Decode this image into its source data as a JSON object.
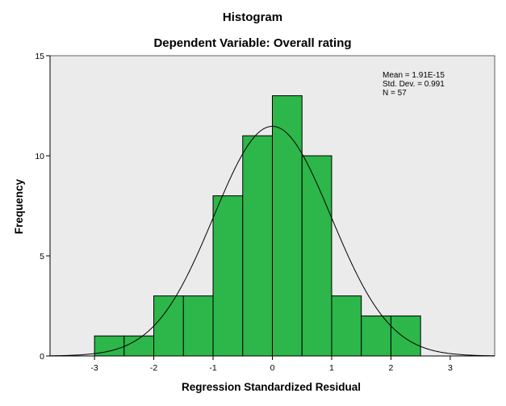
{
  "chart_data": {
    "type": "bar",
    "title": "Histogram",
    "subtitle": "Dependent Variable: Overall rating",
    "xlabel": "Regression Standardized Residual",
    "ylabel": "Frequency",
    "xlim": [
      -3.75,
      3.75
    ],
    "ylim": [
      0,
      15
    ],
    "xticks": [
      -3,
      -2,
      -1,
      0,
      1,
      2,
      3
    ],
    "yticks": [
      0,
      5,
      10,
      15
    ],
    "bin_edges": [
      -3.0,
      -2.5,
      -2.0,
      -1.5,
      -1.0,
      -0.5,
      0.0,
      0.5,
      1.0,
      1.5,
      2.0,
      2.5
    ],
    "values": [
      1,
      1,
      3,
      3,
      8,
      11,
      13,
      10,
      3,
      2,
      2
    ],
    "normal_curve": {
      "mean": 0.0,
      "sd": 0.991,
      "n": 57,
      "bin_width": 0.5
    },
    "stats_lines": [
      "Mean = 1.91E-15",
      "Std. Dev. = 0.991",
      "N = 57"
    ],
    "grid": false,
    "colors": {
      "bar_fill": "#2db64a",
      "bar_stroke": "#000000",
      "plot_bg": "#ebebeb",
      "curve": "#000000"
    }
  }
}
